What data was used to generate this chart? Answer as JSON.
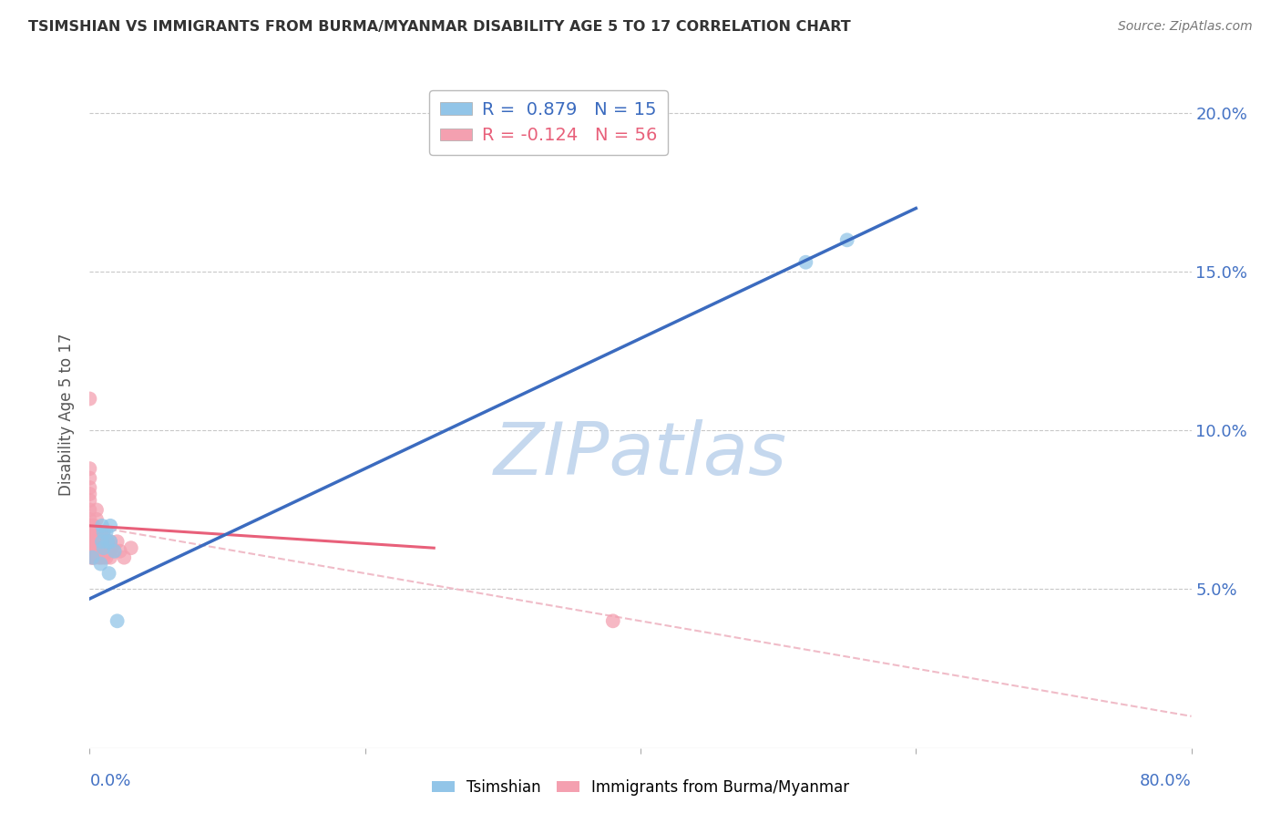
{
  "title": "TSIMSHIAN VS IMMIGRANTS FROM BURMA/MYANMAR DISABILITY AGE 5 TO 17 CORRELATION CHART",
  "source": "Source: ZipAtlas.com",
  "ylabel": "Disability Age 5 to 17",
  "xlim": [
    0.0,
    0.8
  ],
  "ylim": [
    0.0,
    0.21
  ],
  "xticks": [
    0.0,
    0.2,
    0.4,
    0.6,
    0.8
  ],
  "yticks": [
    0.05,
    0.1,
    0.15,
    0.2
  ],
  "background_color": "#ffffff",
  "grid_color": "#c8c8c8",
  "watermark_text": "ZIPatlas",
  "watermark_color": "#c5d8ee",
  "series1_name": "Tsimshian",
  "series1_color": "#92C5E8",
  "series1_line_color": "#3B6BBF",
  "series1_R": 0.879,
  "series1_N": 15,
  "series2_name": "Immigrants from Burma/Myanmar",
  "series2_color": "#F4A0B0",
  "series2_line_color": "#E8607A",
  "series2_dash_color": "#F0BCC8",
  "series2_R": -0.124,
  "series2_N": 56,
  "tsimshian_x": [
    0.002,
    0.008,
    0.009,
    0.009,
    0.01,
    0.01,
    0.012,
    0.013,
    0.014,
    0.015,
    0.015,
    0.018,
    0.02,
    0.52,
    0.55
  ],
  "tsimshian_y": [
    0.06,
    0.058,
    0.065,
    0.07,
    0.063,
    0.068,
    0.068,
    0.065,
    0.055,
    0.065,
    0.07,
    0.062,
    0.04,
    0.153,
    0.16
  ],
  "burma_x": [
    0.0,
    0.0,
    0.0,
    0.0,
    0.0,
    0.0,
    0.0,
    0.0,
    0.0,
    0.0,
    0.001,
    0.001,
    0.001,
    0.002,
    0.002,
    0.002,
    0.002,
    0.003,
    0.003,
    0.003,
    0.003,
    0.004,
    0.004,
    0.004,
    0.005,
    0.005,
    0.005,
    0.005,
    0.005,
    0.006,
    0.006,
    0.007,
    0.007,
    0.007,
    0.008,
    0.008,
    0.008,
    0.009,
    0.009,
    0.01,
    0.01,
    0.01,
    0.011,
    0.011,
    0.012,
    0.013,
    0.014,
    0.015,
    0.015,
    0.016,
    0.018,
    0.02,
    0.022,
    0.025,
    0.03,
    0.38
  ],
  "burma_y": [
    0.065,
    0.07,
    0.072,
    0.075,
    0.078,
    0.08,
    0.082,
    0.085,
    0.088,
    0.11,
    0.06,
    0.063,
    0.068,
    0.06,
    0.063,
    0.066,
    0.07,
    0.06,
    0.063,
    0.066,
    0.07,
    0.06,
    0.063,
    0.068,
    0.062,
    0.065,
    0.068,
    0.072,
    0.075,
    0.062,
    0.065,
    0.06,
    0.063,
    0.066,
    0.06,
    0.063,
    0.068,
    0.062,
    0.065,
    0.06,
    0.063,
    0.068,
    0.062,
    0.065,
    0.06,
    0.063,
    0.062,
    0.06,
    0.065,
    0.063,
    0.062,
    0.065,
    0.062,
    0.06,
    0.063,
    0.04
  ],
  "tsim_line_x": [
    0.0,
    0.6
  ],
  "tsim_line_y": [
    0.047,
    0.17
  ],
  "burma_solid_line_x": [
    0.0,
    0.25
  ],
  "burma_solid_line_y": [
    0.07,
    0.063
  ],
  "burma_dash_line_x": [
    0.0,
    0.8
  ],
  "burma_dash_line_y": [
    0.07,
    0.01
  ],
  "axis_color": "#4472C4",
  "ylabel_color": "#555555",
  "title_color": "#333333",
  "legend_box_color": "#e8e8e8"
}
